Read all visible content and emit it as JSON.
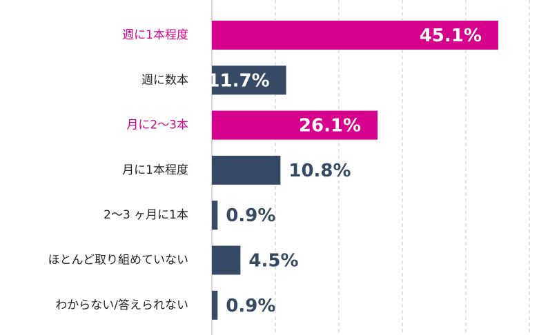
{
  "chart_data": {
    "type": "bar",
    "orientation": "horizontal",
    "categories": [
      "週に1本程度",
      "週に数本",
      "月に2〜3本",
      "月に1本程度",
      "2〜3 ヶ月に1本",
      "ほとんど取り組めていない",
      "わからない/答えられない"
    ],
    "values": [
      45.1,
      11.7,
      26.1,
      10.8,
      0.9,
      4.5,
      0.9
    ],
    "value_labels": [
      "45.1%",
      "11.7%",
      "26.1%",
      "10.8%",
      "0.9%",
      "4.5%",
      "0.9%"
    ],
    "highlighted": [
      true,
      false,
      true,
      false,
      false,
      false,
      false
    ],
    "xlim": [
      0,
      50
    ],
    "grid": true,
    "legend": "none",
    "colors": {
      "highlight": "#d6008c",
      "default": "#364a66",
      "value_text_inside": "#ffffff",
      "value_text_outside": "#364a66",
      "label_default": "#222222",
      "label_highlight": "#d6008c",
      "grid": "#c8c8c8",
      "axis": "#aaaaaa"
    }
  }
}
